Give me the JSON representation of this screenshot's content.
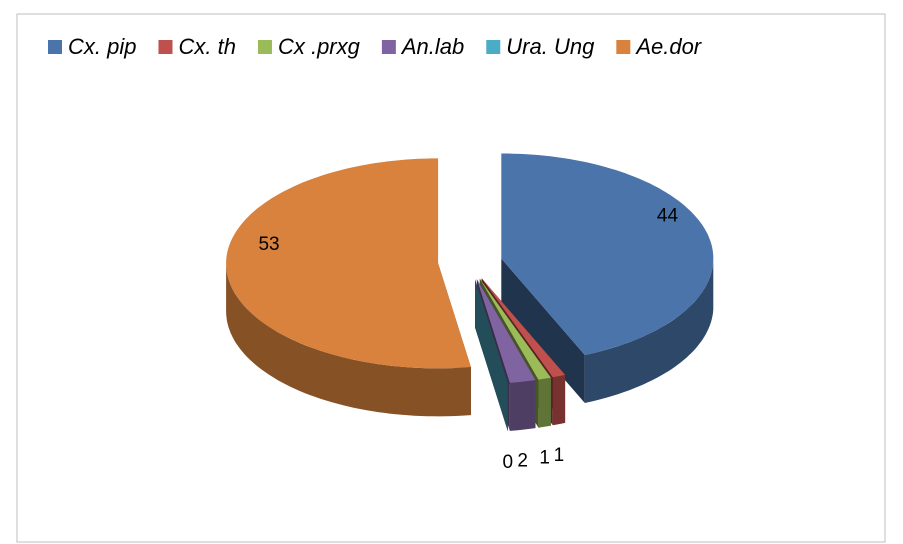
{
  "chart_data": {
    "type": "pie",
    "three_d": true,
    "exploded": true,
    "legend": "top",
    "categories": [
      "Cx. pip",
      "Cx. th",
      "Cx .prxg",
      "An.lab",
      "Ura. Ung",
      "Ae.dor"
    ],
    "values": [
      44,
      1,
      1,
      2,
      0,
      53
    ],
    "colors": [
      "#4a74aa",
      "#c0504d",
      "#9bbb59",
      "#8064a2",
      "#4bacc6",
      "#d9823e"
    ]
  }
}
